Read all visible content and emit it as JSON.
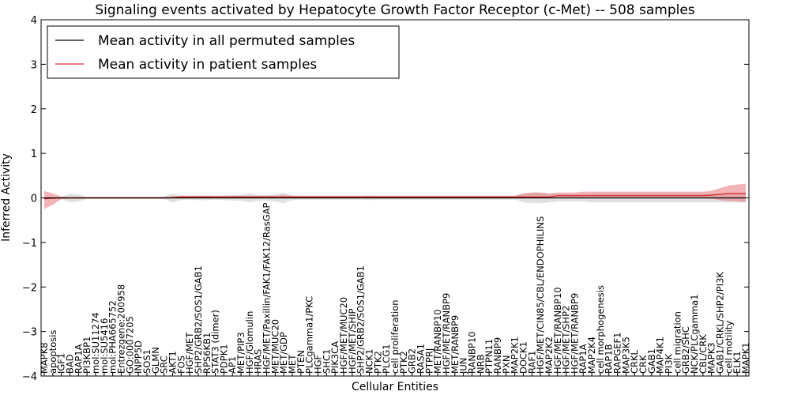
{
  "chart_data": {
    "type": "line",
    "title": "Signaling events activated by Hepatocyte Growth Factor Receptor (c-Met) -- 508 samples",
    "xlabel": "Cellular Entities",
    "ylabel": "Inferred Activity",
    "ylim": [
      -4,
      4
    ],
    "yticks": [
      -4,
      -3,
      -2,
      -1,
      0,
      1,
      2,
      3,
      4
    ],
    "ytick_labels": [
      "−4",
      "−3",
      "−2",
      "−1",
      "0",
      "1",
      "2",
      "3",
      "4"
    ],
    "grid": false,
    "legend_position": "top-left",
    "categories": [
      "MAPK8",
      "apoptosis",
      "IGF1",
      "BAD",
      "RAP1A",
      "PI3KBP1",
      "mol:SU11274",
      "mol:SU5416",
      "mol:PHA665752",
      "Entrezgene:200958",
      "GO:0007205",
      "INPP5D",
      "SOS1",
      "GLMN",
      "SRC",
      "AKT1",
      "FOS",
      "HGF/MET",
      "SHP2/GRB2/SOS1/GAB1",
      "RPS6KB1",
      "STAT3 (dimer)",
      "PDPK1",
      "AP1",
      "MET/PIP3",
      "HGF/Glomulin",
      "HRAS",
      "HGF/MET/Paxillin/FAK1/FAK12/RasGAP",
      "MET/MUC20",
      "MET/GDP",
      "MET",
      "PTEN",
      "PLCgamma1/PKC",
      "HGF",
      "SHC1",
      "PIK3CA",
      "HGF/MET/MUC20",
      "HGF/MET/SHIP",
      "SHP2/GRB2/SOS1/GAB1",
      "NCK1",
      "PTK2",
      "PLCG1",
      "cell proliferation",
      "PTK2",
      "GRB2",
      "RASA1",
      "PTPRJ",
      "MET/RANBP10",
      "HGF/MET/RANBP9",
      "MET/RANBP9",
      "JUN",
      "RANBP10",
      "NRB",
      "PTPN11",
      "RANBP9",
      "PXN",
      "MAP2K1",
      "DOCK1",
      "RAF1",
      "HGF/MET/CIN85/CBL/ENDOPHILINS",
      "MAP2K2",
      "HGF/MET/RANBP10",
      "HGF/MET/SHP2",
      "HGF/MET/RANBP9",
      "RAP1A",
      "MAP2K4",
      "cell morphogenesis",
      "RAP1B",
      "RAPGEF1",
      "MAP3K5",
      "CRKL",
      "CRK",
      "GAB1",
      "MAP4K1",
      "PI3K",
      "cell migration",
      "GRB2/SHC",
      "NCK/PLCgamma1",
      "CBL/CRK",
      "MAPK3",
      "GAB1/CRKL/SHP2/PI3K",
      "cell motility",
      "ELK1",
      "MAPK1"
    ],
    "series": [
      {
        "name": "Mean activity in all permuted samples",
        "color": "#000000",
        "values": [
          0,
          0,
          0,
          0,
          0,
          0,
          0,
          0,
          0,
          0,
          0,
          0,
          0,
          0,
          0,
          0,
          0,
          0,
          0,
          0,
          0,
          0,
          0,
          0,
          0,
          0,
          0,
          0,
          0,
          0,
          0,
          0,
          0,
          0,
          0,
          0,
          0,
          0,
          0,
          0,
          0,
          0,
          0,
          0,
          0,
          0,
          0,
          0,
          0,
          0,
          0,
          0,
          0,
          0,
          0,
          0,
          0,
          0,
          0,
          0,
          0,
          0,
          0,
          0,
          0,
          0,
          0,
          0,
          0,
          0,
          0,
          0,
          0,
          0,
          0,
          0,
          0,
          0,
          0,
          0,
          0,
          0,
          0
        ],
        "band_low": [
          -0.02,
          -0.02,
          -0.02,
          -0.1,
          -0.08,
          -0.02,
          -0.02,
          -0.02,
          -0.02,
          -0.02,
          -0.02,
          -0.02,
          -0.02,
          -0.02,
          -0.03,
          -0.1,
          -0.05,
          -0.04,
          -0.05,
          -0.05,
          -0.04,
          -0.05,
          -0.06,
          -0.06,
          -0.1,
          -0.06,
          -0.06,
          -0.08,
          -0.12,
          -0.05,
          -0.04,
          -0.04,
          -0.04,
          -0.04,
          -0.04,
          -0.04,
          -0.04,
          -0.04,
          -0.05,
          -0.04,
          -0.04,
          -0.04,
          -0.04,
          -0.04,
          -0.04,
          -0.04,
          -0.04,
          -0.04,
          -0.04,
          -0.04,
          -0.04,
          -0.04,
          -0.04,
          -0.04,
          -0.04,
          -0.04,
          -0.1,
          -0.12,
          -0.12,
          -0.1,
          -0.08,
          -0.08,
          -0.08,
          -0.08,
          -0.1,
          -0.1,
          -0.1,
          -0.1,
          -0.1,
          -0.1,
          -0.1,
          -0.1,
          -0.1,
          -0.1,
          -0.1,
          -0.1,
          -0.1,
          -0.1,
          -0.1,
          -0.1,
          -0.1,
          -0.1,
          -0.1
        ],
        "band_high": [
          0.02,
          0.02,
          0.02,
          0.1,
          0.08,
          0.02,
          0.02,
          0.02,
          0.02,
          0.02,
          0.02,
          0.02,
          0.02,
          0.02,
          0.03,
          0.1,
          0.05,
          0.04,
          0.05,
          0.05,
          0.04,
          0.05,
          0.06,
          0.06,
          0.1,
          0.06,
          0.06,
          0.08,
          0.12,
          0.05,
          0.04,
          0.04,
          0.04,
          0.04,
          0.04,
          0.04,
          0.04,
          0.04,
          0.05,
          0.04,
          0.04,
          0.04,
          0.04,
          0.04,
          0.04,
          0.04,
          0.04,
          0.04,
          0.04,
          0.04,
          0.04,
          0.04,
          0.04,
          0.04,
          0.04,
          0.04,
          0.1,
          0.12,
          0.12,
          0.1,
          0.08,
          0.08,
          0.08,
          0.08,
          0.1,
          0.1,
          0.1,
          0.1,
          0.1,
          0.1,
          0.1,
          0.1,
          0.1,
          0.1,
          0.1,
          0.1,
          0.1,
          0.1,
          0.1,
          0.1,
          0.1,
          0.1,
          0.1
        ]
      },
      {
        "name": "Mean activity in patient samples",
        "color": "#d62728",
        "values": [
          -0.02,
          -0.01,
          0,
          0,
          0,
          0,
          0,
          0,
          0,
          0,
          0,
          0,
          0,
          0,
          0,
          0.01,
          0.02,
          0.02,
          0.02,
          0.02,
          0.02,
          0.02,
          0.02,
          0.02,
          0.02,
          0.02,
          0.02,
          0.02,
          0.02,
          0.02,
          0.02,
          0.02,
          0.02,
          0.02,
          0.02,
          0.02,
          0.02,
          0.02,
          0.02,
          0.02,
          0.02,
          0.02,
          0.02,
          0.02,
          0.02,
          0.02,
          0.02,
          0.02,
          0.02,
          0.02,
          0.02,
          0.02,
          0.02,
          0.02,
          0.02,
          0.02,
          0.02,
          0.02,
          0.02,
          0.02,
          0.05,
          0.05,
          0.05,
          0.05,
          0.05,
          0.05,
          0.05,
          0.05,
          0.05,
          0.05,
          0.05,
          0.05,
          0.05,
          0.05,
          0.05,
          0.05,
          0.05,
          0.05,
          0.06,
          0.08,
          0.1,
          0.1,
          0.1
        ],
        "band_low": [
          -0.25,
          -0.15,
          -0.03,
          -0.02,
          -0.02,
          -0.02,
          -0.02,
          -0.02,
          -0.02,
          -0.02,
          -0.02,
          -0.02,
          -0.02,
          -0.02,
          -0.02,
          -0.01,
          -0.01,
          -0.01,
          -0.01,
          -0.01,
          -0.01,
          -0.01,
          -0.01,
          -0.01,
          -0.01,
          -0.01,
          -0.01,
          -0.01,
          -0.01,
          -0.01,
          -0.01,
          -0.01,
          -0.01,
          -0.01,
          -0.01,
          -0.01,
          -0.01,
          -0.01,
          -0.01,
          -0.01,
          -0.01,
          -0.01,
          -0.01,
          -0.01,
          -0.01,
          -0.01,
          -0.01,
          -0.01,
          -0.01,
          -0.01,
          -0.01,
          -0.01,
          -0.01,
          -0.01,
          -0.01,
          -0.01,
          -0.01,
          -0.01,
          -0.01,
          -0.01,
          -0.01,
          -0.01,
          -0.01,
          -0.01,
          -0.01,
          -0.01,
          -0.01,
          -0.01,
          -0.01,
          -0.01,
          -0.01,
          -0.01,
          -0.01,
          -0.01,
          -0.01,
          -0.01,
          -0.01,
          -0.01,
          -0.02,
          -0.05,
          -0.07,
          -0.08,
          -0.1
        ],
        "band_high": [
          0.15,
          0.1,
          0.03,
          0.02,
          0.02,
          0.02,
          0.02,
          0.02,
          0.02,
          0.02,
          0.02,
          0.02,
          0.02,
          0.02,
          0.02,
          0.03,
          0.05,
          0.05,
          0.05,
          0.05,
          0.05,
          0.05,
          0.05,
          0.05,
          0.05,
          0.05,
          0.05,
          0.05,
          0.06,
          0.05,
          0.05,
          0.05,
          0.05,
          0.05,
          0.05,
          0.05,
          0.05,
          0.05,
          0.05,
          0.05,
          0.05,
          0.05,
          0.05,
          0.05,
          0.05,
          0.05,
          0.05,
          0.05,
          0.05,
          0.05,
          0.05,
          0.05,
          0.05,
          0.05,
          0.05,
          0.05,
          0.1,
          0.12,
          0.12,
          0.1,
          0.12,
          0.12,
          0.12,
          0.14,
          0.14,
          0.14,
          0.14,
          0.14,
          0.14,
          0.14,
          0.14,
          0.14,
          0.14,
          0.14,
          0.14,
          0.14,
          0.14,
          0.14,
          0.16,
          0.22,
          0.28,
          0.3,
          0.32
        ]
      }
    ],
    "reference_line": {
      "y": 0,
      "style": "dotted",
      "color": "#d62728"
    }
  }
}
